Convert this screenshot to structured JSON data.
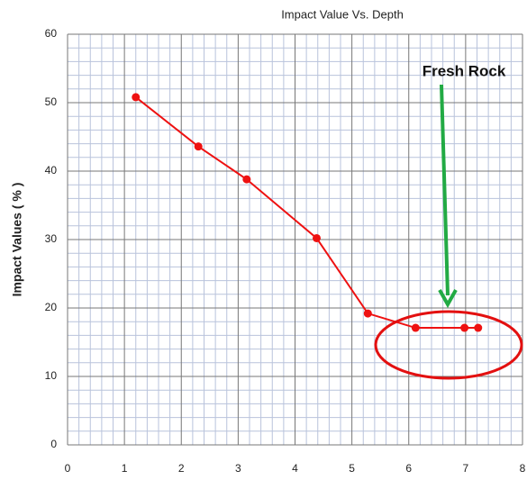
{
  "chart_data": {
    "type": "line",
    "title": "Impact Value Vs. Depth",
    "y_label": "Impact Values ( % )",
    "annotation": "Fresh Rock",
    "x": [
      1.2,
      2.3,
      3.15,
      4.38,
      5.28,
      6.12,
      6.98,
      7.22
    ],
    "series": [
      {
        "name": "Impact Value",
        "color": "#ee1111",
        "values": [
          50.8,
          43.6,
          38.8,
          30.2,
          19.2,
          17.1,
          17.1,
          17.1
        ]
      }
    ],
    "xlim": [
      0,
      8
    ],
    "xticks": [
      0,
      1,
      2,
      3,
      4,
      5,
      6,
      7,
      8
    ],
    "ylim": [
      0,
      60
    ],
    "yticks": [
      0,
      10,
      20,
      30,
      40,
      50,
      60
    ],
    "grid": true,
    "minor_divisions": 5
  }
}
